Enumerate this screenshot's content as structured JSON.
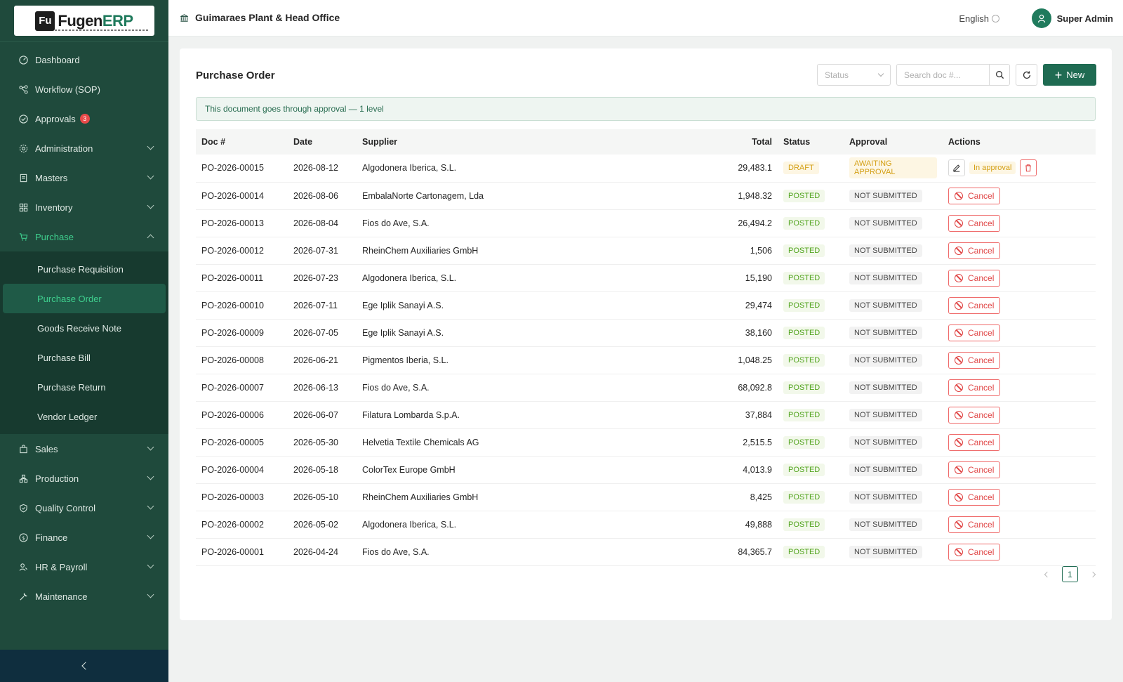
{
  "app": {
    "logo_mark": "Fu",
    "logo_brand": "Fugen",
    "logo_suffix": "ERP"
  },
  "sidebar": {
    "items": [
      {
        "label": "Dashboard",
        "icon": "dashboard-icon"
      },
      {
        "label": "Workflow (SOP)",
        "icon": "workflow-icon"
      },
      {
        "label": "Approvals",
        "icon": "check-circle-icon",
        "badge": "3"
      },
      {
        "label": "Administration",
        "icon": "gear-icon"
      },
      {
        "label": "Masters",
        "icon": "book-icon"
      },
      {
        "label": "Inventory",
        "icon": "grid-icon"
      },
      {
        "label": "Purchase",
        "icon": "cart-icon"
      }
    ],
    "purchase_sub": [
      "Purchase Requisition",
      "Purchase Order",
      "Goods Receive Note",
      "Purchase Bill",
      "Purchase Return",
      "Vendor Ledger"
    ],
    "items_after": [
      {
        "label": "Sales",
        "icon": "bag-icon"
      },
      {
        "label": "Production",
        "icon": "production-icon"
      },
      {
        "label": "Quality Control",
        "icon": "shield-icon"
      },
      {
        "label": "Finance",
        "icon": "dollar-icon"
      },
      {
        "label": "HR & Payroll",
        "icon": "people-icon"
      },
      {
        "label": "Maintenance",
        "icon": "wrench-icon"
      }
    ]
  },
  "header": {
    "plant": "Guimaraes Plant & Head Office",
    "language": "English",
    "user": "Super Admin"
  },
  "main": {
    "title": "Purchase Order",
    "status_placeholder": "Status",
    "search_placeholder": "Search doc #...",
    "new_label": "New",
    "alert": "This document goes through approval — 1 level",
    "columns": [
      "Doc #",
      "Date",
      "Supplier",
      "Total",
      "Status",
      "Approval",
      "Actions"
    ],
    "cancel_label": "Cancel",
    "in_approval_label": "In approval",
    "rows": [
      {
        "doc": "PO-2026-00015",
        "date": "2026-08-12",
        "supplier": "Algodonera Iberica, S.L.",
        "total": "29,483.1",
        "status": "DRAFT",
        "approval": "AWAITING APPROVAL"
      },
      {
        "doc": "PO-2026-00014",
        "date": "2026-08-06",
        "supplier": "EmbalaNorte Cartonagem, Lda",
        "total": "1,948.32",
        "status": "POSTED",
        "approval": "NOT SUBMITTED"
      },
      {
        "doc": "PO-2026-00013",
        "date": "2026-08-04",
        "supplier": "Fios do Ave, S.A.",
        "total": "26,494.2",
        "status": "POSTED",
        "approval": "NOT SUBMITTED"
      },
      {
        "doc": "PO-2026-00012",
        "date": "2026-07-31",
        "supplier": "RheinChem Auxiliaries GmbH",
        "total": "1,506",
        "status": "POSTED",
        "approval": "NOT SUBMITTED"
      },
      {
        "doc": "PO-2026-00011",
        "date": "2026-07-23",
        "supplier": "Algodonera Iberica, S.L.",
        "total": "15,190",
        "status": "POSTED",
        "approval": "NOT SUBMITTED"
      },
      {
        "doc": "PO-2026-00010",
        "date": "2026-07-11",
        "supplier": "Ege Iplik Sanayi A.S.",
        "total": "29,474",
        "status": "POSTED",
        "approval": "NOT SUBMITTED"
      },
      {
        "doc": "PO-2026-00009",
        "date": "2026-07-05",
        "supplier": "Ege Iplik Sanayi A.S.",
        "total": "38,160",
        "status": "POSTED",
        "approval": "NOT SUBMITTED"
      },
      {
        "doc": "PO-2026-00008",
        "date": "2026-06-21",
        "supplier": "Pigmentos Iberia, S.L.",
        "total": "1,048.25",
        "status": "POSTED",
        "approval": "NOT SUBMITTED"
      },
      {
        "doc": "PO-2026-00007",
        "date": "2026-06-13",
        "supplier": "Fios do Ave, S.A.",
        "total": "68,092.8",
        "status": "POSTED",
        "approval": "NOT SUBMITTED"
      },
      {
        "doc": "PO-2026-00006",
        "date": "2026-06-07",
        "supplier": "Filatura Lombarda S.p.A.",
        "total": "37,884",
        "status": "POSTED",
        "approval": "NOT SUBMITTED"
      },
      {
        "doc": "PO-2026-00005",
        "date": "2026-05-30",
        "supplier": "Helvetia Textile Chemicals AG",
        "total": "2,515.5",
        "status": "POSTED",
        "approval": "NOT SUBMITTED"
      },
      {
        "doc": "PO-2026-00004",
        "date": "2026-05-18",
        "supplier": "ColorTex Europe GmbH",
        "total": "4,013.9",
        "status": "POSTED",
        "approval": "NOT SUBMITTED"
      },
      {
        "doc": "PO-2026-00003",
        "date": "2026-05-10",
        "supplier": "RheinChem Auxiliaries GmbH",
        "total": "8,425",
        "status": "POSTED",
        "approval": "NOT SUBMITTED"
      },
      {
        "doc": "PO-2026-00002",
        "date": "2026-05-02",
        "supplier": "Algodonera Iberica, S.L.",
        "total": "49,888",
        "status": "POSTED",
        "approval": "NOT SUBMITTED"
      },
      {
        "doc": "PO-2026-00001",
        "date": "2026-04-24",
        "supplier": "Fios do Ave, S.A.",
        "total": "84,365.7",
        "status": "POSTED",
        "approval": "NOT SUBMITTED"
      }
    ],
    "page": "1"
  },
  "colors": {
    "sidebar_bg": "#1f4a3c",
    "accent": "#1f6b52",
    "active_text": "#3fcf8e",
    "posted": "#52a41f",
    "draft": "#d4a017",
    "danger": "#e04545"
  }
}
